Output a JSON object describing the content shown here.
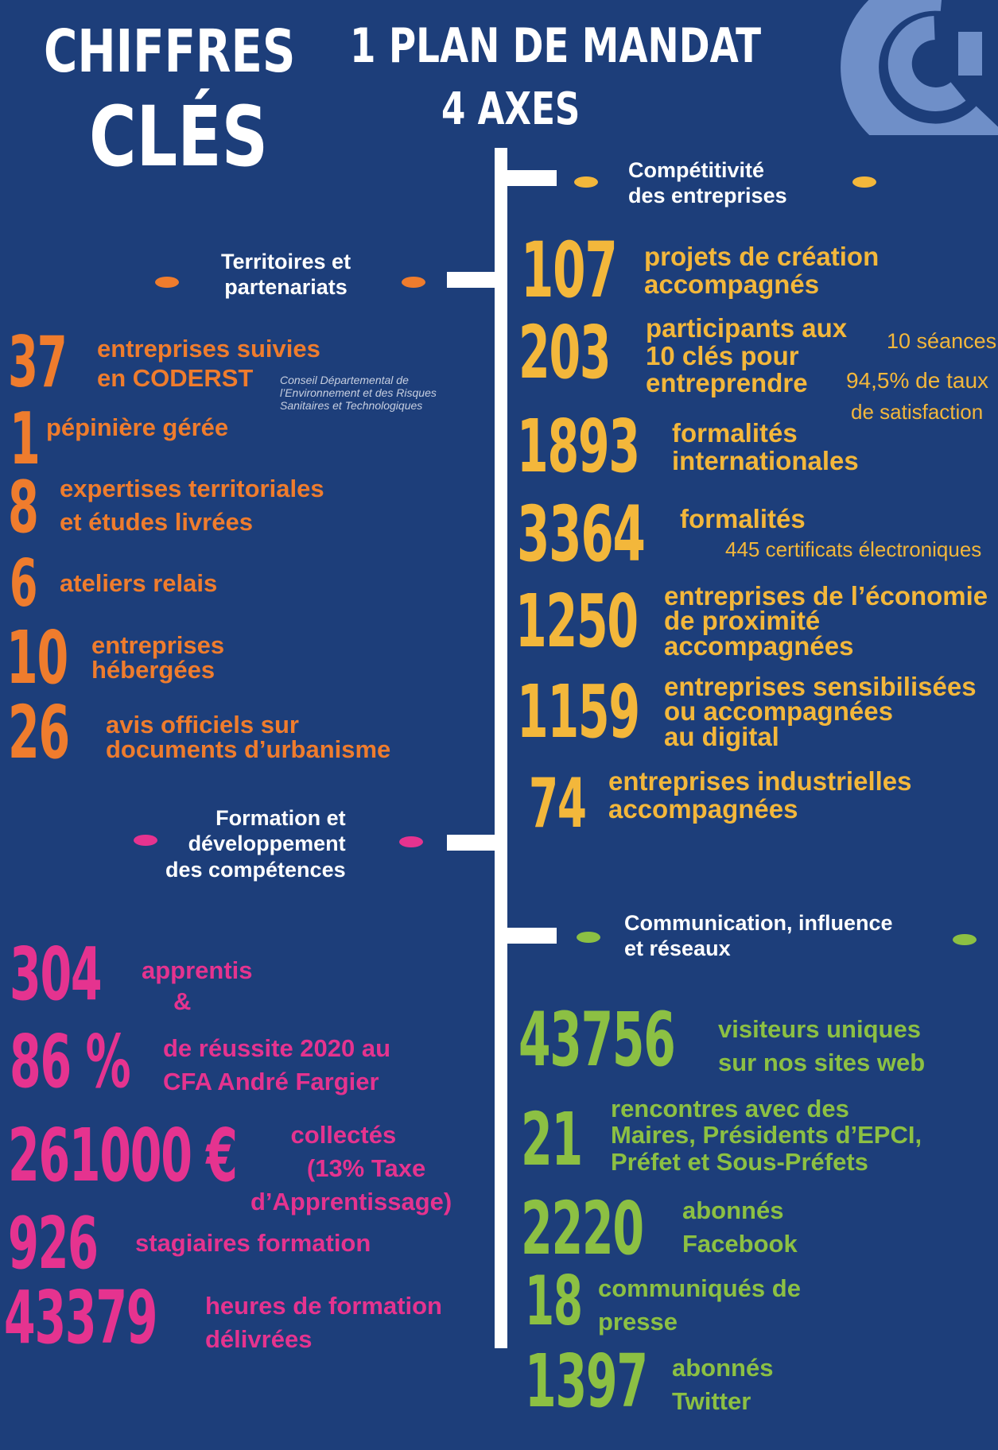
{
  "header": {
    "title_line1": "CHIFFRES",
    "title_line2": "CLÉS",
    "plan_line1": "1 PLAN DE MANDAT",
    "plan_line2": "4 AXES"
  },
  "colors": {
    "background": "#1d3e7a",
    "territoires": "#ef7c2d",
    "competitivite": "#f3b73b",
    "formation": "#e5338f",
    "communication": "#8cc043",
    "logo": "#6f8fc8"
  },
  "sections": {
    "competitivite": {
      "title_line1": "Compétitivité",
      "title_line2": "des entreprises",
      "items": [
        {
          "number": "107",
          "line1": "projets de création",
          "line2": "accompagnés"
        },
        {
          "number": "203",
          "line1": "participants aux",
          "line2": "10 clés pour",
          "line3": "entreprendre",
          "note1": "10 séances",
          "note2": "94,5% de taux",
          "note3": "de satisfaction"
        },
        {
          "number": "1893",
          "line1": "formalités",
          "line2": "internationales"
        },
        {
          "number": "3364",
          "line1": "formalités",
          "note1": "445 certificats électroniques"
        },
        {
          "number": "1250",
          "line1": "entreprises de l’économie",
          "line2": "de proximité",
          "line3": "accompagnées"
        },
        {
          "number": "1159",
          "line1": "entreprises sensibilisées",
          "line2": "ou accompagnées",
          "line3": "au digital"
        },
        {
          "number": "74",
          "line1": "entreprises industrielles",
          "line2": "accompagnées"
        }
      ]
    },
    "territoires": {
      "title_line1": "Territoires et",
      "title_line2": "partenariats",
      "items": [
        {
          "number": "37",
          "line1": "entreprises suivies",
          "line2": "en CODERST",
          "note1": "Conseil Départemental de",
          "note2": "l’Environnement et des Risques",
          "note3": "Sanitaires et Technologiques"
        },
        {
          "number": "1",
          "line1": "pépinière gérée"
        },
        {
          "number": "8",
          "line1": "expertises territoriales",
          "line2": "et études livrées"
        },
        {
          "number": "6",
          "line1": "ateliers relais"
        },
        {
          "number": "10",
          "line1": "entreprises",
          "line2": "hébergées"
        },
        {
          "number": "26",
          "line1": "avis officiels sur",
          "line2": "documents d’urbanisme"
        }
      ]
    },
    "formation": {
      "title_line1": "Formation et",
      "title_line2": "développement",
      "title_line3": "des compétences",
      "items": [
        {
          "number": "304",
          "line1": "apprentis",
          "line2": "&"
        },
        {
          "number": "86 %",
          "line1": "de réussite 2020 au",
          "line2": "CFA André Fargier"
        },
        {
          "number": "261000 €",
          "line1": "collectés",
          "line2": "(13% Taxe",
          "line3": "d’Apprentissage)"
        },
        {
          "number": "926",
          "line1": "stagiaires formation"
        },
        {
          "number": "43379",
          "line1": "heures de formation",
          "line2": "délivrées"
        }
      ]
    },
    "communication": {
      "title_line1": "Communication, influence",
      "title_line2": "et réseaux",
      "items": [
        {
          "number": "43756",
          "line1": "visiteurs uniques",
          "line2": "sur nos sites web"
        },
        {
          "number": "21",
          "line1": "rencontres avec des",
          "line2": "Maires, Présidents d’EPCI,",
          "line3": "Préfet et Sous-Préfets"
        },
        {
          "number": "2220",
          "line1": "abonnés",
          "line2": "Facebook"
        },
        {
          "number": "18",
          "line1": "communiqués de",
          "line2": "presse"
        },
        {
          "number": "1397",
          "line1": "abonnés",
          "line2": "Twitter"
        }
      ]
    }
  }
}
